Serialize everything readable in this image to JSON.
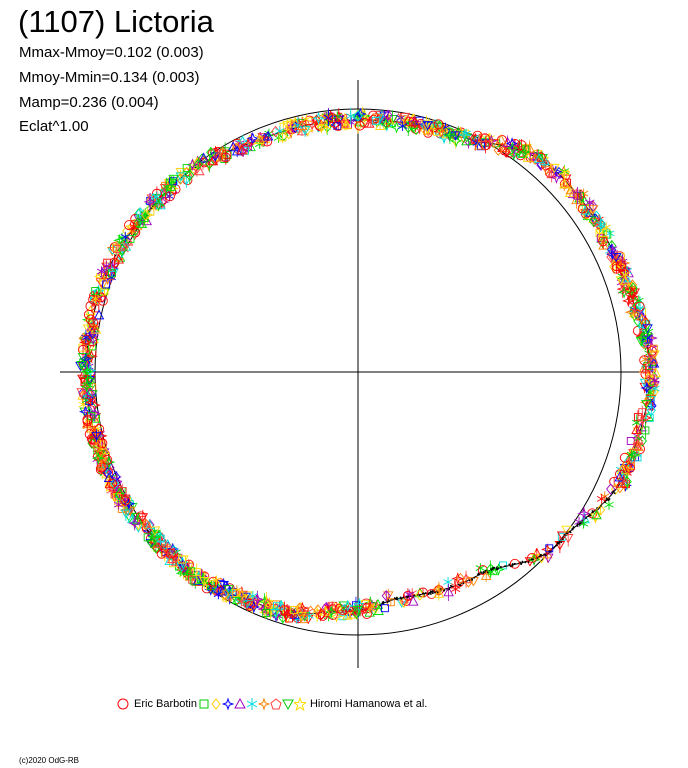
{
  "chart_data": {
    "type": "scatter",
    "title": "(1107) Lictoria",
    "stats": [
      "Mmax-Mmoy=0.102 (0.003)",
      "Mmoy-Mmin=0.134 (0.003)",
      "Mamp=0.236 (0.004)",
      "Eclat^1.00"
    ],
    "grid": false,
    "legend_position": "bottom",
    "colors": {
      "eric_barbotin": "#ff0000",
      "s2": "#00cc00",
      "s3": "#ffff00",
      "s4": "#0000ff",
      "s5": "#a000c0",
      "s6": "#00ffff",
      "s7": "#ff8000",
      "s8": "#ff4040",
      "s9": "#00e000",
      "s10": "#ffd000",
      "hiromi": "#000000",
      "reference_circle": "#000000",
      "axes": "#000000"
    },
    "legend": {
      "first_label": "Eric Barbotin",
      "last_label": "Hiromi Hamanowa et al.",
      "symbols": [
        "circle-icon",
        "square-icon",
        "diamond-icon",
        "star4-icon",
        "triangle-icon",
        "star6-icon",
        "star4-orange-icon",
        "pentagon-icon",
        "triangle-down-icon",
        "star-yellow-icon"
      ]
    },
    "copyright": "(c)2020 OdG-RB"
  }
}
